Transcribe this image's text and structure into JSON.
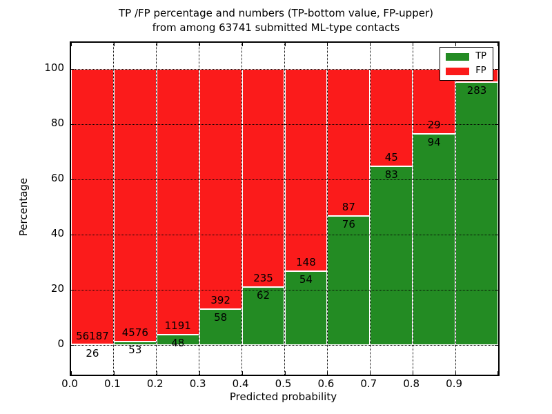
{
  "chart_data": {
    "type": "stacked_bar",
    "title_line1": "TP /FP percentage and numbers (TP-bottom value, FP-upper)",
    "title_line2": "from among 63741 submitted ML-type contacts",
    "xlabel": "Predicted probability",
    "ylabel": "Percentage",
    "total_submitted_contacts": 63741,
    "bin_width": 0.1,
    "x_tick_labels": [
      "0.0",
      "0.1",
      "0.2",
      "0.3",
      "0.4",
      "0.5",
      "0.6",
      "0.7",
      "0.8",
      "0.9"
    ],
    "y_tick_values": [
      0,
      20,
      40,
      60,
      80,
      100
    ],
    "xlim": [
      0.0,
      1.0
    ],
    "ylim": [
      -10.8,
      109.5
    ],
    "grid": "dotted",
    "legend_position": "upper-right",
    "legend": [
      {
        "label": "TP",
        "color": "#238b23"
      },
      {
        "label": "FP",
        "color": "#fb1b1b"
      }
    ],
    "colors": {
      "tp": "#238b23",
      "fp": "#fb1b1b",
      "bar_edge": "#ffffff",
      "text": "#000000"
    },
    "bins": [
      {
        "x_start": 0.0,
        "tp_count": 26,
        "fp_count": 56187,
        "tp_pct": 0.05
      },
      {
        "x_start": 0.1,
        "tp_count": 53,
        "fp_count": 4576,
        "tp_pct": 1.14
      },
      {
        "x_start": 0.2,
        "tp_count": 48,
        "fp_count": 1191,
        "tp_pct": 3.87
      },
      {
        "x_start": 0.3,
        "tp_count": 58,
        "fp_count": 392,
        "tp_pct": 12.89
      },
      {
        "x_start": 0.4,
        "tp_count": 62,
        "fp_count": 235,
        "tp_pct": 20.88
      },
      {
        "x_start": 0.5,
        "tp_count": 54,
        "fp_count": 148,
        "tp_pct": 26.73
      },
      {
        "x_start": 0.6,
        "tp_count": 76,
        "fp_count": 87,
        "tp_pct": 46.63
      },
      {
        "x_start": 0.7,
        "tp_count": 83,
        "fp_count": 45,
        "tp_pct": 64.84
      },
      {
        "x_start": 0.8,
        "tp_count": 94,
        "fp_count": 29,
        "tp_pct": 76.42
      },
      {
        "x_start": 0.9,
        "tp_count": 283,
        "fp_count": null,
        "tp_pct": 95.3,
        "fp_label_hidden_behind_legend": true
      }
    ]
  }
}
